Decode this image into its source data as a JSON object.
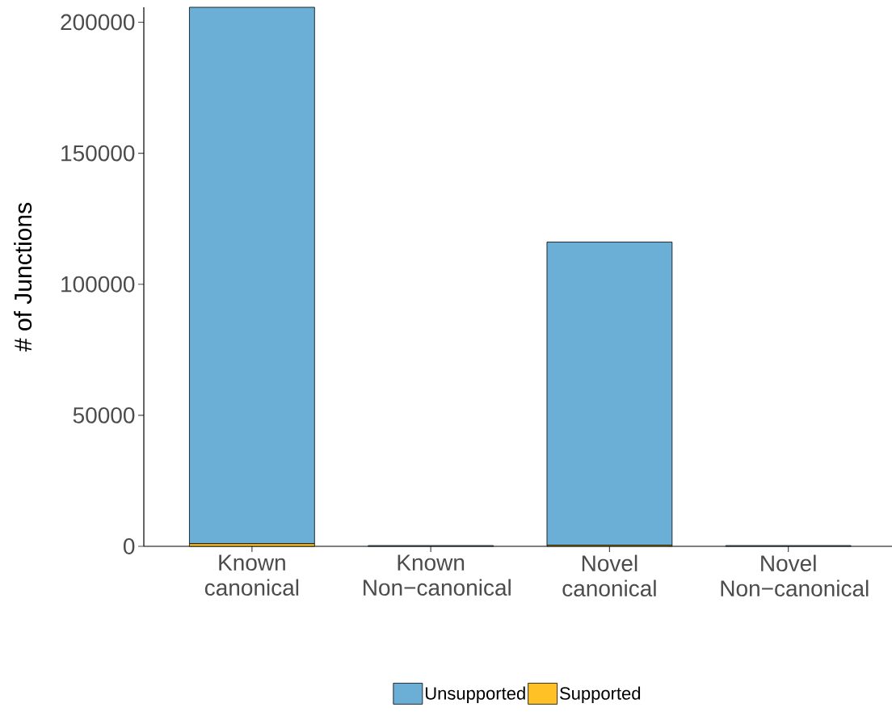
{
  "chart_data": {
    "type": "bar",
    "stacked": true,
    "ylabel": "# of Junctions",
    "categories": [
      "Known canonical",
      "Known Non−canonical",
      "Novel canonical",
      "Novel Non−canonical"
    ],
    "series": [
      {
        "name": "Supported",
        "color": "#ffc125",
        "values": [
          1000,
          0,
          400,
          0
        ]
      },
      {
        "name": "Unsupported",
        "color": "#6baed6",
        "values": [
          204700,
          300,
          115700,
          300
        ]
      }
    ],
    "ylim": [
      0,
      205700
    ],
    "yticks": [
      0,
      50000,
      100000,
      150000,
      200000
    ],
    "grid": false,
    "legend": "bottom"
  }
}
